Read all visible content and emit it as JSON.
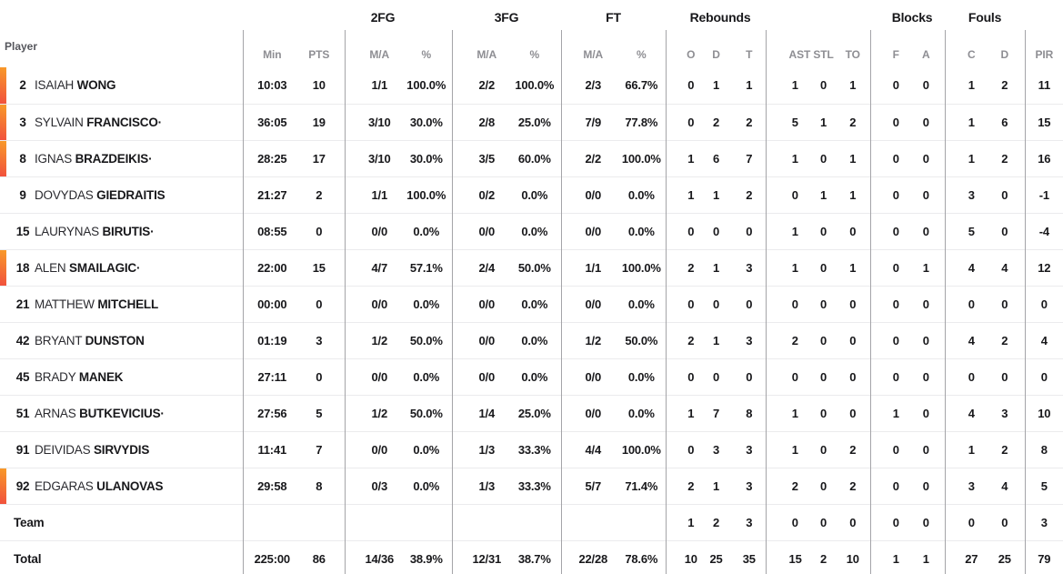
{
  "table": {
    "player_header": "Player",
    "starter_mark": "·",
    "accent_color_top": "#f89b29",
    "accent_color_bottom": "#f1503d",
    "group_headers": {
      "fg2": "2FG",
      "fg3": "3FG",
      "ft": "FT",
      "rebounds": "Rebounds",
      "blocks": "Blocks",
      "fouls": "Fouls"
    },
    "column_headers": {
      "min": "Min",
      "pts": "PTS",
      "ma": "M/A",
      "pct": "%",
      "o": "O",
      "d": "D",
      "t": "T",
      "ast": "AST",
      "stl": "STL",
      "to": "TO",
      "f": "F",
      "a": "A",
      "c": "C",
      "pir": "PIR"
    },
    "rows": [
      {
        "number": "2",
        "first": "ISAIAH",
        "last": "WONG",
        "starter": false,
        "on_court": true,
        "min": "10:03",
        "pts": "10",
        "fg2_ma": "1/1",
        "fg2_pct": "100.0%",
        "fg3_ma": "2/2",
        "fg3_pct": "100.0%",
        "ft_ma": "2/3",
        "ft_pct": "66.7%",
        "reb_o": "0",
        "reb_d": "1",
        "reb_t": "1",
        "ast": "1",
        "stl": "0",
        "to": "1",
        "blk_f": "0",
        "blk_a": "0",
        "foul_c": "1",
        "foul_d": "2",
        "pir": "11"
      },
      {
        "number": "3",
        "first": "SYLVAIN",
        "last": "FRANCISCO",
        "starter": true,
        "on_court": true,
        "min": "36:05",
        "pts": "19",
        "fg2_ma": "3/10",
        "fg2_pct": "30.0%",
        "fg3_ma": "2/8",
        "fg3_pct": "25.0%",
        "ft_ma": "7/9",
        "ft_pct": "77.8%",
        "reb_o": "0",
        "reb_d": "2",
        "reb_t": "2",
        "ast": "5",
        "stl": "1",
        "to": "2",
        "blk_f": "0",
        "blk_a": "0",
        "foul_c": "1",
        "foul_d": "6",
        "pir": "15"
      },
      {
        "number": "8",
        "first": "IGNAS",
        "last": "BRAZDEIKIS",
        "starter": true,
        "on_court": true,
        "min": "28:25",
        "pts": "17",
        "fg2_ma": "3/10",
        "fg2_pct": "30.0%",
        "fg3_ma": "3/5",
        "fg3_pct": "60.0%",
        "ft_ma": "2/2",
        "ft_pct": "100.0%",
        "reb_o": "1",
        "reb_d": "6",
        "reb_t": "7",
        "ast": "1",
        "stl": "0",
        "to": "1",
        "blk_f": "0",
        "blk_a": "0",
        "foul_c": "1",
        "foul_d": "2",
        "pir": "16"
      },
      {
        "number": "9",
        "first": "DOVYDAS",
        "last": "GIEDRAITIS",
        "starter": false,
        "on_court": false,
        "min": "21:27",
        "pts": "2",
        "fg2_ma": "1/1",
        "fg2_pct": "100.0%",
        "fg3_ma": "0/2",
        "fg3_pct": "0.0%",
        "ft_ma": "0/0",
        "ft_pct": "0.0%",
        "reb_o": "1",
        "reb_d": "1",
        "reb_t": "2",
        "ast": "0",
        "stl": "1",
        "to": "1",
        "blk_f": "0",
        "blk_a": "0",
        "foul_c": "3",
        "foul_d": "0",
        "pir": "-1"
      },
      {
        "number": "15",
        "first": "LAURYNAS",
        "last": "BIRUTIS",
        "starter": true,
        "on_court": false,
        "min": "08:55",
        "pts": "0",
        "fg2_ma": "0/0",
        "fg2_pct": "0.0%",
        "fg3_ma": "0/0",
        "fg3_pct": "0.0%",
        "ft_ma": "0/0",
        "ft_pct": "0.0%",
        "reb_o": "0",
        "reb_d": "0",
        "reb_t": "0",
        "ast": "1",
        "stl": "0",
        "to": "0",
        "blk_f": "0",
        "blk_a": "0",
        "foul_c": "5",
        "foul_d": "0",
        "pir": "-4"
      },
      {
        "number": "18",
        "first": "ALEN",
        "last": "SMAILAGIC",
        "starter": true,
        "on_court": true,
        "min": "22:00",
        "pts": "15",
        "fg2_ma": "4/7",
        "fg2_pct": "57.1%",
        "fg3_ma": "2/4",
        "fg3_pct": "50.0%",
        "ft_ma": "1/1",
        "ft_pct": "100.0%",
        "reb_o": "2",
        "reb_d": "1",
        "reb_t": "3",
        "ast": "1",
        "stl": "0",
        "to": "1",
        "blk_f": "0",
        "blk_a": "1",
        "foul_c": "4",
        "foul_d": "4",
        "pir": "12"
      },
      {
        "number": "21",
        "first": "MATTHEW",
        "last": "MITCHELL",
        "starter": false,
        "on_court": false,
        "min": "00:00",
        "pts": "0",
        "fg2_ma": "0/0",
        "fg2_pct": "0.0%",
        "fg3_ma": "0/0",
        "fg3_pct": "0.0%",
        "ft_ma": "0/0",
        "ft_pct": "0.0%",
        "reb_o": "0",
        "reb_d": "0",
        "reb_t": "0",
        "ast": "0",
        "stl": "0",
        "to": "0",
        "blk_f": "0",
        "blk_a": "0",
        "foul_c": "0",
        "foul_d": "0",
        "pir": "0"
      },
      {
        "number": "42",
        "first": "BRYANT",
        "last": "DUNSTON",
        "starter": false,
        "on_court": false,
        "min": "01:19",
        "pts": "3",
        "fg2_ma": "1/2",
        "fg2_pct": "50.0%",
        "fg3_ma": "0/0",
        "fg3_pct": "0.0%",
        "ft_ma": "1/2",
        "ft_pct": "50.0%",
        "reb_o": "2",
        "reb_d": "1",
        "reb_t": "3",
        "ast": "2",
        "stl": "0",
        "to": "0",
        "blk_f": "0",
        "blk_a": "0",
        "foul_c": "4",
        "foul_d": "2",
        "pir": "4"
      },
      {
        "number": "45",
        "first": "BRADY",
        "last": "MANEK",
        "starter": false,
        "on_court": false,
        "min": "27:11",
        "pts": "0",
        "fg2_ma": "0/0",
        "fg2_pct": "0.0%",
        "fg3_ma": "0/0",
        "fg3_pct": "0.0%",
        "ft_ma": "0/0",
        "ft_pct": "0.0%",
        "reb_o": "0",
        "reb_d": "0",
        "reb_t": "0",
        "ast": "0",
        "stl": "0",
        "to": "0",
        "blk_f": "0",
        "blk_a": "0",
        "foul_c": "0",
        "foul_d": "0",
        "pir": "0"
      },
      {
        "number": "51",
        "first": "ARNAS",
        "last": "BUTKEVICIUS",
        "starter": true,
        "on_court": false,
        "min": "27:56",
        "pts": "5",
        "fg2_ma": "1/2",
        "fg2_pct": "50.0%",
        "fg3_ma": "1/4",
        "fg3_pct": "25.0%",
        "ft_ma": "0/0",
        "ft_pct": "0.0%",
        "reb_o": "1",
        "reb_d": "7",
        "reb_t": "8",
        "ast": "1",
        "stl": "0",
        "to": "0",
        "blk_f": "1",
        "blk_a": "0",
        "foul_c": "4",
        "foul_d": "3",
        "pir": "10"
      },
      {
        "number": "91",
        "first": "DEIVIDAS",
        "last": "SIRVYDIS",
        "starter": false,
        "on_court": false,
        "min": "11:41",
        "pts": "7",
        "fg2_ma": "0/0",
        "fg2_pct": "0.0%",
        "fg3_ma": "1/3",
        "fg3_pct": "33.3%",
        "ft_ma": "4/4",
        "ft_pct": "100.0%",
        "reb_o": "0",
        "reb_d": "3",
        "reb_t": "3",
        "ast": "1",
        "stl": "0",
        "to": "2",
        "blk_f": "0",
        "blk_a": "0",
        "foul_c": "1",
        "foul_d": "2",
        "pir": "8"
      },
      {
        "number": "92",
        "first": "EDGARAS",
        "last": "ULANOVAS",
        "starter": false,
        "on_court": true,
        "min": "29:58",
        "pts": "8",
        "fg2_ma": "0/3",
        "fg2_pct": "0.0%",
        "fg3_ma": "1/3",
        "fg3_pct": "33.3%",
        "ft_ma": "5/7",
        "ft_pct": "71.4%",
        "reb_o": "2",
        "reb_d": "1",
        "reb_t": "3",
        "ast": "2",
        "stl": "0",
        "to": "2",
        "blk_f": "0",
        "blk_a": "0",
        "foul_c": "3",
        "foul_d": "4",
        "pir": "5"
      }
    ],
    "team_row": {
      "label": "Team",
      "min": "",
      "pts": "",
      "fg2_ma": "",
      "fg2_pct": "",
      "fg3_ma": "",
      "fg3_pct": "",
      "ft_ma": "",
      "ft_pct": "",
      "reb_o": "1",
      "reb_d": "2",
      "reb_t": "3",
      "ast": "0",
      "stl": "0",
      "to": "0",
      "blk_f": "0",
      "blk_a": "0",
      "foul_c": "0",
      "foul_d": "0",
      "pir": "3"
    },
    "total_row": {
      "label": "Total",
      "min": "225:00",
      "pts": "86",
      "fg2_ma": "14/36",
      "fg2_pct": "38.9%",
      "fg3_ma": "12/31",
      "fg3_pct": "38.7%",
      "ft_ma": "22/28",
      "ft_pct": "78.6%",
      "reb_o": "10",
      "reb_d": "25",
      "reb_t": "35",
      "ast": "15",
      "stl": "2",
      "to": "10",
      "blk_f": "1",
      "blk_a": "1",
      "foul_c": "27",
      "foul_d": "25",
      "pir": "79"
    }
  }
}
